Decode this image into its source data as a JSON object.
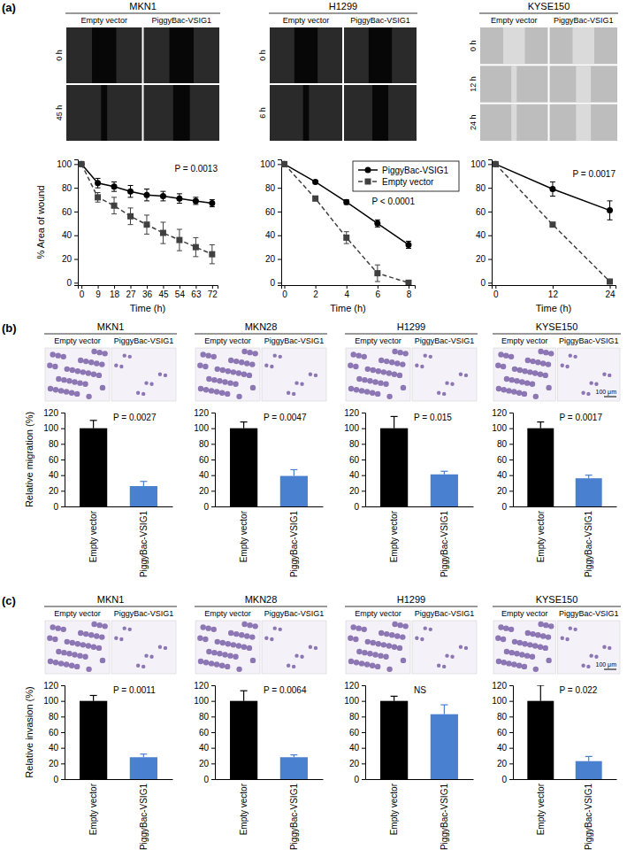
{
  "panel_labels": [
    "(a)",
    "(b)",
    "(c)"
  ],
  "chart_data": [
    {
      "type": "line",
      "title": "MKN1",
      "image_columns": [
        "Empty vector",
        "PiggyBac-VSIG1"
      ],
      "image_rows": [
        "0 h",
        "45 h"
      ],
      "x": [
        0,
        9,
        18,
        27,
        36,
        45,
        54,
        63,
        72
      ],
      "series": [
        {
          "color": "#000000",
          "line_style": "solid",
          "marker": "circle",
          "values": [
            100,
            84,
            81,
            77,
            74,
            73,
            71,
            69,
            67
          ],
          "errors": [
            0,
            4,
            4,
            5,
            5,
            4,
            4,
            3,
            3
          ]
        },
        {
          "color": "#404040",
          "line_style": "dashed",
          "marker": "square",
          "values": [
            100,
            72,
            65,
            56,
            49,
            42,
            36,
            30,
            24
          ],
          "errors": [
            0,
            4,
            7,
            7,
            8,
            9,
            9,
            8,
            8
          ]
        }
      ],
      "xlim": [
        -2,
        75
      ],
      "xticks": [
        0,
        9,
        18,
        27,
        36,
        45,
        54,
        63,
        72
      ],
      "ylim": [
        -2,
        104
      ],
      "yticks": [
        0,
        20,
        40,
        60,
        80,
        100
      ],
      "x_label": "Time (h)",
      "y_label": "% Area of wound",
      "annotations": [
        "P = 0.0013"
      ]
    },
    {
      "type": "line",
      "title": "H1299",
      "image_columns": [
        "Empty vector",
        "PiggyBac-VSIG1"
      ],
      "image_rows": [
        "0 h",
        "6 h"
      ],
      "x": [
        0,
        2,
        4,
        6,
        8
      ],
      "series": [
        {
          "name": "PiggyBac-VSIG1",
          "color": "#000000",
          "line_style": "solid",
          "marker": "circle",
          "values": [
            100,
            85,
            68,
            50,
            32
          ],
          "errors": [
            0,
            1,
            2,
            3,
            3
          ]
        },
        {
          "name": "Empty vector",
          "color": "#404040",
          "line_style": "dashed",
          "marker": "square",
          "values": [
            100,
            71,
            38,
            8,
            0
          ],
          "errors": [
            0,
            2,
            5,
            7,
            1
          ]
        }
      ],
      "legend": "top-right",
      "xlim": [
        -0.2,
        8.4
      ],
      "xticks": [
        0,
        2,
        4,
        6,
        8
      ],
      "ylim": [
        -2,
        104
      ],
      "yticks": [
        0,
        20,
        40,
        60,
        80,
        100
      ],
      "x_label": "Time (h)",
      "annotations": [
        "P < 0.0001"
      ]
    },
    {
      "type": "line",
      "title": "KYSE150",
      "image_columns": [
        "Empty vector",
        "PiggyBac-VSIG1"
      ],
      "image_rows": [
        "0 h",
        "12 h",
        "24 h"
      ],
      "x": [
        0,
        12,
        24
      ],
      "series": [
        {
          "color": "#000000",
          "line_style": "solid",
          "marker": "circle",
          "values": [
            100,
            79,
            61
          ],
          "errors": [
            0,
            6,
            8
          ]
        },
        {
          "color": "#404040",
          "line_style": "dashed",
          "marker": "square",
          "values": [
            100,
            49,
            1
          ],
          "errors": [
            0,
            1,
            1
          ]
        }
      ],
      "xlim": [
        -0.8,
        25.2
      ],
      "xticks": [
        0,
        12,
        24
      ],
      "ylim": [
        -2,
        104
      ],
      "yticks": [
        0,
        20,
        40,
        60,
        80,
        100
      ],
      "x_label": "Time (h)",
      "annotations": [
        "P = 0.0017"
      ]
    },
    {
      "type": "bar",
      "title": "MKN1",
      "image_columns": [
        "Empty vector",
        "PiggyBac-VSIG1"
      ],
      "categories": [
        "Empty vector",
        "PiggyBac-VSIG1"
      ],
      "values": [
        100,
        26
      ],
      "errors": [
        10,
        6
      ],
      "colors": [
        "#000000",
        "#4a80d0"
      ],
      "ylim": [
        0,
        120
      ],
      "yticks": [
        0,
        20,
        40,
        60,
        80,
        100,
        120
      ],
      "y_label": "Relative migration (%)",
      "annotations": [
        "P = 0.0027"
      ]
    },
    {
      "type": "bar",
      "title": "MKN28",
      "image_columns": [
        "Empty vector",
        "PiggyBac-VSIG1"
      ],
      "categories": [
        "Empty vector",
        "PiggyBac-VSIG1"
      ],
      "values": [
        100,
        39
      ],
      "errors": [
        8,
        8
      ],
      "colors": [
        "#000000",
        "#4a80d0"
      ],
      "ylim": [
        0,
        120
      ],
      "yticks": [
        0,
        20,
        40,
        60,
        80,
        100,
        120
      ],
      "annotations": [
        "P = 0.0047"
      ]
    },
    {
      "type": "bar",
      "title": "H1299",
      "image_columns": [
        "Empty vector",
        "PiggyBac-VSIG1"
      ],
      "categories": [
        "Empty vector",
        "PiggyBac-VSIG1"
      ],
      "values": [
        100,
        41
      ],
      "errors": [
        15,
        4
      ],
      "colors": [
        "#000000",
        "#4a80d0"
      ],
      "ylim": [
        0,
        120
      ],
      "yticks": [
        0,
        20,
        40,
        60,
        80,
        100,
        120
      ],
      "annotations": [
        "P = 0.015"
      ]
    },
    {
      "type": "bar",
      "title": "KYSE150",
      "image_columns": [
        "Empty vector",
        "PiggyBac-VSIG1"
      ],
      "scale_bar": "100 μm",
      "categories": [
        "Empty vector",
        "PiggyBac-VSIG1"
      ],
      "values": [
        100,
        36
      ],
      "errors": [
        8,
        4
      ],
      "colors": [
        "#000000",
        "#4a80d0"
      ],
      "ylim": [
        0,
        120
      ],
      "yticks": [
        0,
        20,
        40,
        60,
        80,
        100,
        120
      ],
      "annotations": [
        "P = 0.0017"
      ]
    },
    {
      "type": "bar",
      "title": "MKN1",
      "image_columns": [
        "Empty vector",
        "PiggyBac-VSIG1"
      ],
      "categories": [
        "Empty vector",
        "PiggyBac-VSIG1"
      ],
      "values": [
        100,
        28
      ],
      "errors": [
        7,
        4
      ],
      "colors": [
        "#000000",
        "#4a80d0"
      ],
      "ylim": [
        0,
        120
      ],
      "yticks": [
        0,
        20,
        40,
        60,
        80,
        100,
        120
      ],
      "y_label": "Relative invasion (%)",
      "annotations": [
        "P = 0.0011"
      ]
    },
    {
      "type": "bar",
      "title": "MKN28",
      "image_columns": [
        "Empty vector",
        "PiggyBac-VSIG1"
      ],
      "categories": [
        "Empty vector",
        "PiggyBac-VSIG1"
      ],
      "values": [
        100,
        28
      ],
      "errors": [
        13,
        3
      ],
      "colors": [
        "#000000",
        "#4a80d0"
      ],
      "ylim": [
        0,
        120
      ],
      "yticks": [
        0,
        20,
        40,
        60,
        80,
        100,
        120
      ],
      "annotations": [
        "P = 0.0064"
      ]
    },
    {
      "type": "bar",
      "title": "H1299",
      "image_columns": [
        "Empty vector",
        "PiggyBac-VSIG1"
      ],
      "categories": [
        "Empty vector",
        "PiggyBac-VSIG1"
      ],
      "values": [
        100,
        83
      ],
      "errors": [
        6,
        12
      ],
      "colors": [
        "#000000",
        "#4a80d0"
      ],
      "ylim": [
        0,
        120
      ],
      "yticks": [
        0,
        20,
        40,
        60,
        80,
        100,
        120
      ],
      "annotations": [
        "NS"
      ]
    },
    {
      "type": "bar",
      "title": "KYSE150",
      "image_columns": [
        "Empty vector",
        "PiggyBac-VSIG1"
      ],
      "scale_bar": "100 μm",
      "categories": [
        "Empty vector",
        "PiggyBac-VSIG1"
      ],
      "values": [
        100,
        23
      ],
      "errors": [
        20,
        6
      ],
      "colors": [
        "#000000",
        "#4a80d0"
      ],
      "ylim": [
        0,
        120
      ],
      "yticks": [
        0,
        20,
        40,
        60,
        80,
        100,
        120
      ],
      "annotations": [
        "P = 0.022"
      ]
    }
  ]
}
